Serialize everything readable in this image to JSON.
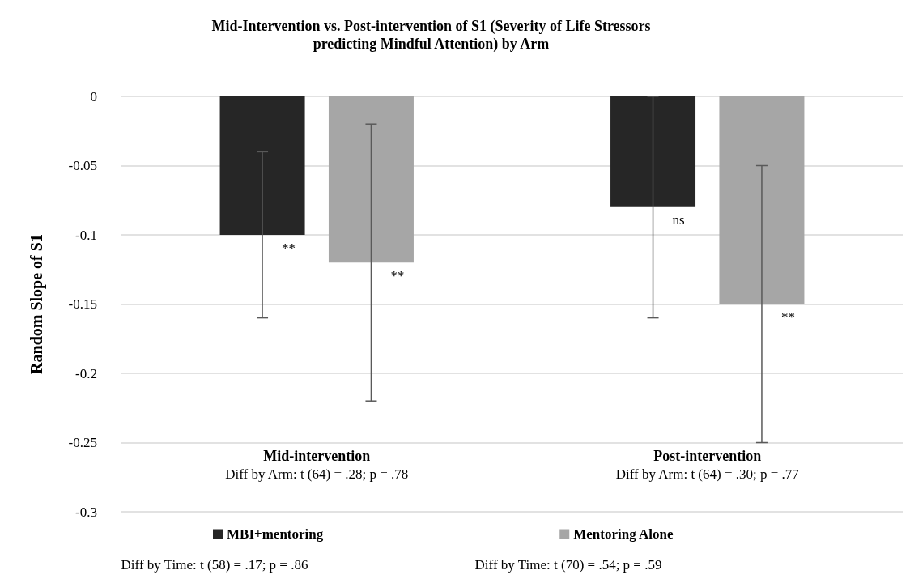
{
  "chart_data": {
    "type": "bar",
    "title": "Mid-Intervention vs. Post-intervention of S1 (Severity of Life Stressors\npredicting Mindful Attention) by Arm",
    "ylabel": "Random Slope of S1",
    "categories": [
      "Mid-intervention",
      "Post-intervention"
    ],
    "series": [
      {
        "name": "MBI+mentoring",
        "color": "#262626",
        "values": [
          -0.1,
          -0.08
        ],
        "errors": [
          0.06,
          0.08
        ]
      },
      {
        "name": "Mentoring Alone",
        "color": "#a6a6a6",
        "values": [
          -0.12,
          -0.15
        ],
        "errors": [
          0.1,
          0.1
        ]
      }
    ],
    "ylim": [
      -0.3,
      0
    ],
    "yticks": [
      -0.3,
      -0.25,
      -0.2,
      -0.15,
      -0.1,
      -0.05,
      0
    ],
    "grid": "y",
    "legend": "bottom",
    "annotations": [
      "**",
      "**",
      "ns",
      "**",
      "Diff by Arm: t (64) = .28; p = .78",
      "Diff by Arm: t (64) = .30; p = .77",
      "Diff by Time: t (58) = .17; p = .86",
      "Diff by Time: t (70) = .54; p = .59"
    ]
  }
}
